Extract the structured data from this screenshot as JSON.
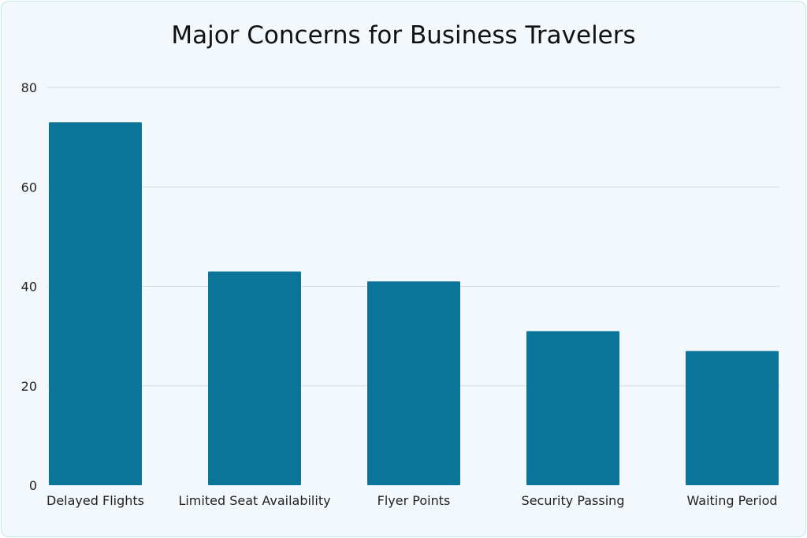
{
  "chart_data": {
    "type": "bar",
    "title": "Major Concerns for Business Travelers",
    "categories": [
      "Delayed Flights",
      "Limited Seat Availability",
      "Flyer Points",
      "Security Passing",
      "Waiting Period"
    ],
    "values": [
      73,
      43,
      41,
      31,
      27
    ],
    "xlabel": "",
    "ylabel": "",
    "ylim": [
      0,
      80
    ],
    "yticks": [
      "0",
      "20",
      "40",
      "60",
      "80"
    ],
    "grid": true,
    "bar_color": "#0b7599",
    "background_color": "#f2f8fc"
  }
}
